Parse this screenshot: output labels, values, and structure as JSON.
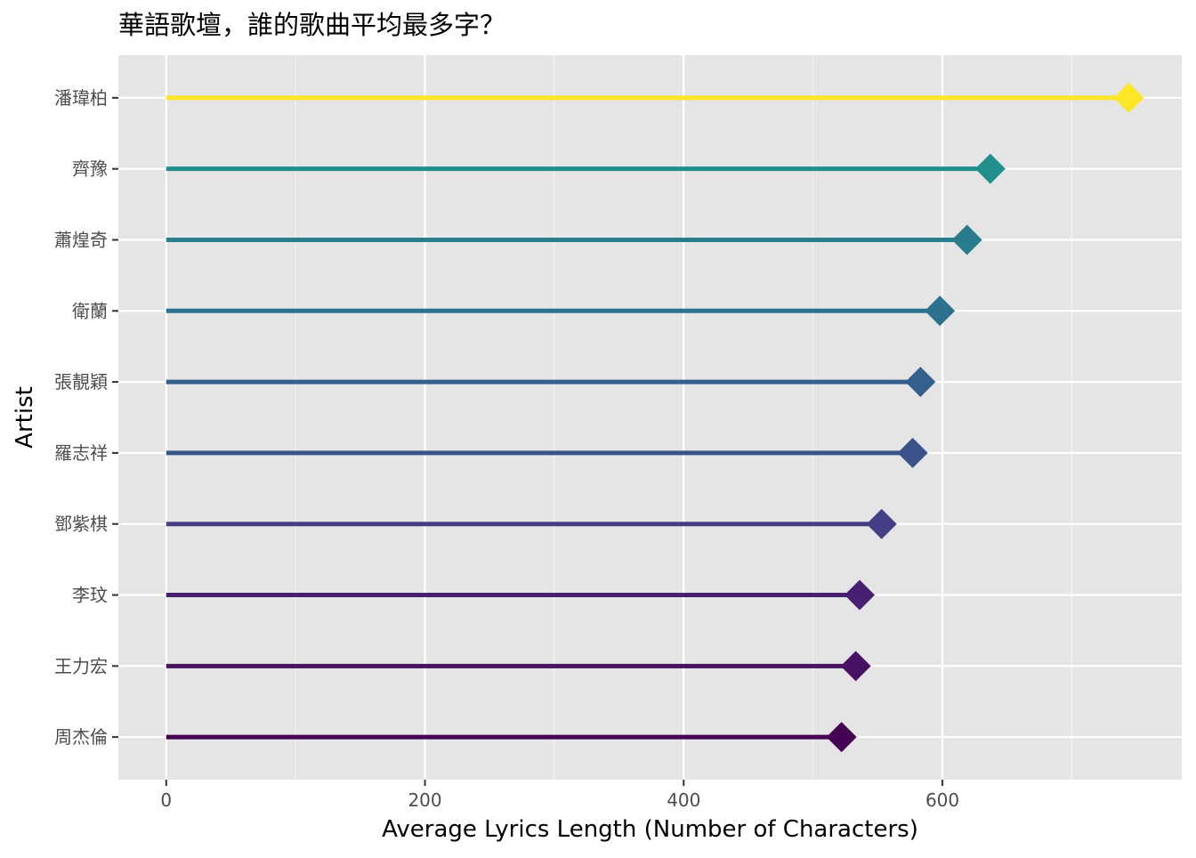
{
  "chart_data": {
    "type": "lollipop",
    "title": "華語歌壇，誰的歌曲平均最多字？",
    "xlabel": "Average Lyrics Length (Number of Characters)",
    "ylabel": "Artist",
    "xlim": [
      -37,
      785
    ],
    "x_ticks": [
      0,
      200,
      400,
      600
    ],
    "grid": true,
    "legend": "none",
    "categories": [
      "周杰倫",
      "王力宏",
      "李玟",
      "鄧紫棋",
      "羅志祥",
      "張靚穎",
      "衛蘭",
      "蕭煌奇",
      "齊豫",
      "潘瑋柏"
    ],
    "values": [
      522,
      533,
      536,
      553,
      577,
      583,
      598,
      619,
      637,
      744
    ],
    "colors": [
      "#440154",
      "#471164",
      "#482071",
      "#433e85",
      "#3b528b",
      "#355f8d",
      "#2c728e",
      "#287c8e",
      "#21908d",
      "#fde725"
    ]
  }
}
